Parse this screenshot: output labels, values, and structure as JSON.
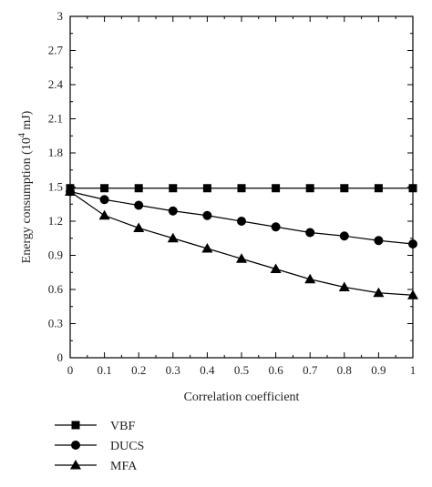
{
  "chart_data": {
    "type": "line",
    "xlabel": "Correlation coefficient",
    "ylabel": "Energy consumption (10",
    "ylabel_sup": "4",
    "ylabel_suffix": " mJ)",
    "x": [
      0,
      0.1,
      0.2,
      0.3,
      0.4,
      0.5,
      0.6,
      0.7,
      0.8,
      0.9,
      1
    ],
    "x_tick_labels": [
      "0",
      "0.1",
      "0.2",
      "0.3",
      "0.4",
      "0.5",
      "0.6",
      "0.7",
      "0.8",
      "0.9",
      "1"
    ],
    "y_ticks": [
      0,
      0.3,
      0.6,
      0.9,
      1.2,
      1.5,
      1.8,
      2.1,
      2.4,
      2.7,
      3
    ],
    "y_tick_labels": [
      "0",
      "0.3",
      "0.6",
      "0.9",
      "1.2",
      "1.5",
      "1.8",
      "2.1",
      "2.4",
      "2.7",
      "3"
    ],
    "xlim": [
      0,
      1
    ],
    "ylim": [
      0,
      3
    ],
    "grid": false,
    "legend_position": "below-left",
    "series": [
      {
        "name": "VBF",
        "marker": "square",
        "values": [
          1.49,
          1.49,
          1.49,
          1.49,
          1.49,
          1.49,
          1.49,
          1.49,
          1.49,
          1.49,
          1.49
        ]
      },
      {
        "name": "DUCS",
        "marker": "circle",
        "values": [
          1.46,
          1.39,
          1.34,
          1.29,
          1.25,
          1.2,
          1.15,
          1.1,
          1.07,
          1.03,
          1.0
        ]
      },
      {
        "name": "MFA",
        "marker": "triangle",
        "values": [
          1.46,
          1.25,
          1.14,
          1.05,
          0.96,
          0.87,
          0.78,
          0.69,
          0.62,
          0.57,
          0.55
        ]
      }
    ],
    "colors": {
      "line": "#000000",
      "axis": "#000000"
    }
  }
}
